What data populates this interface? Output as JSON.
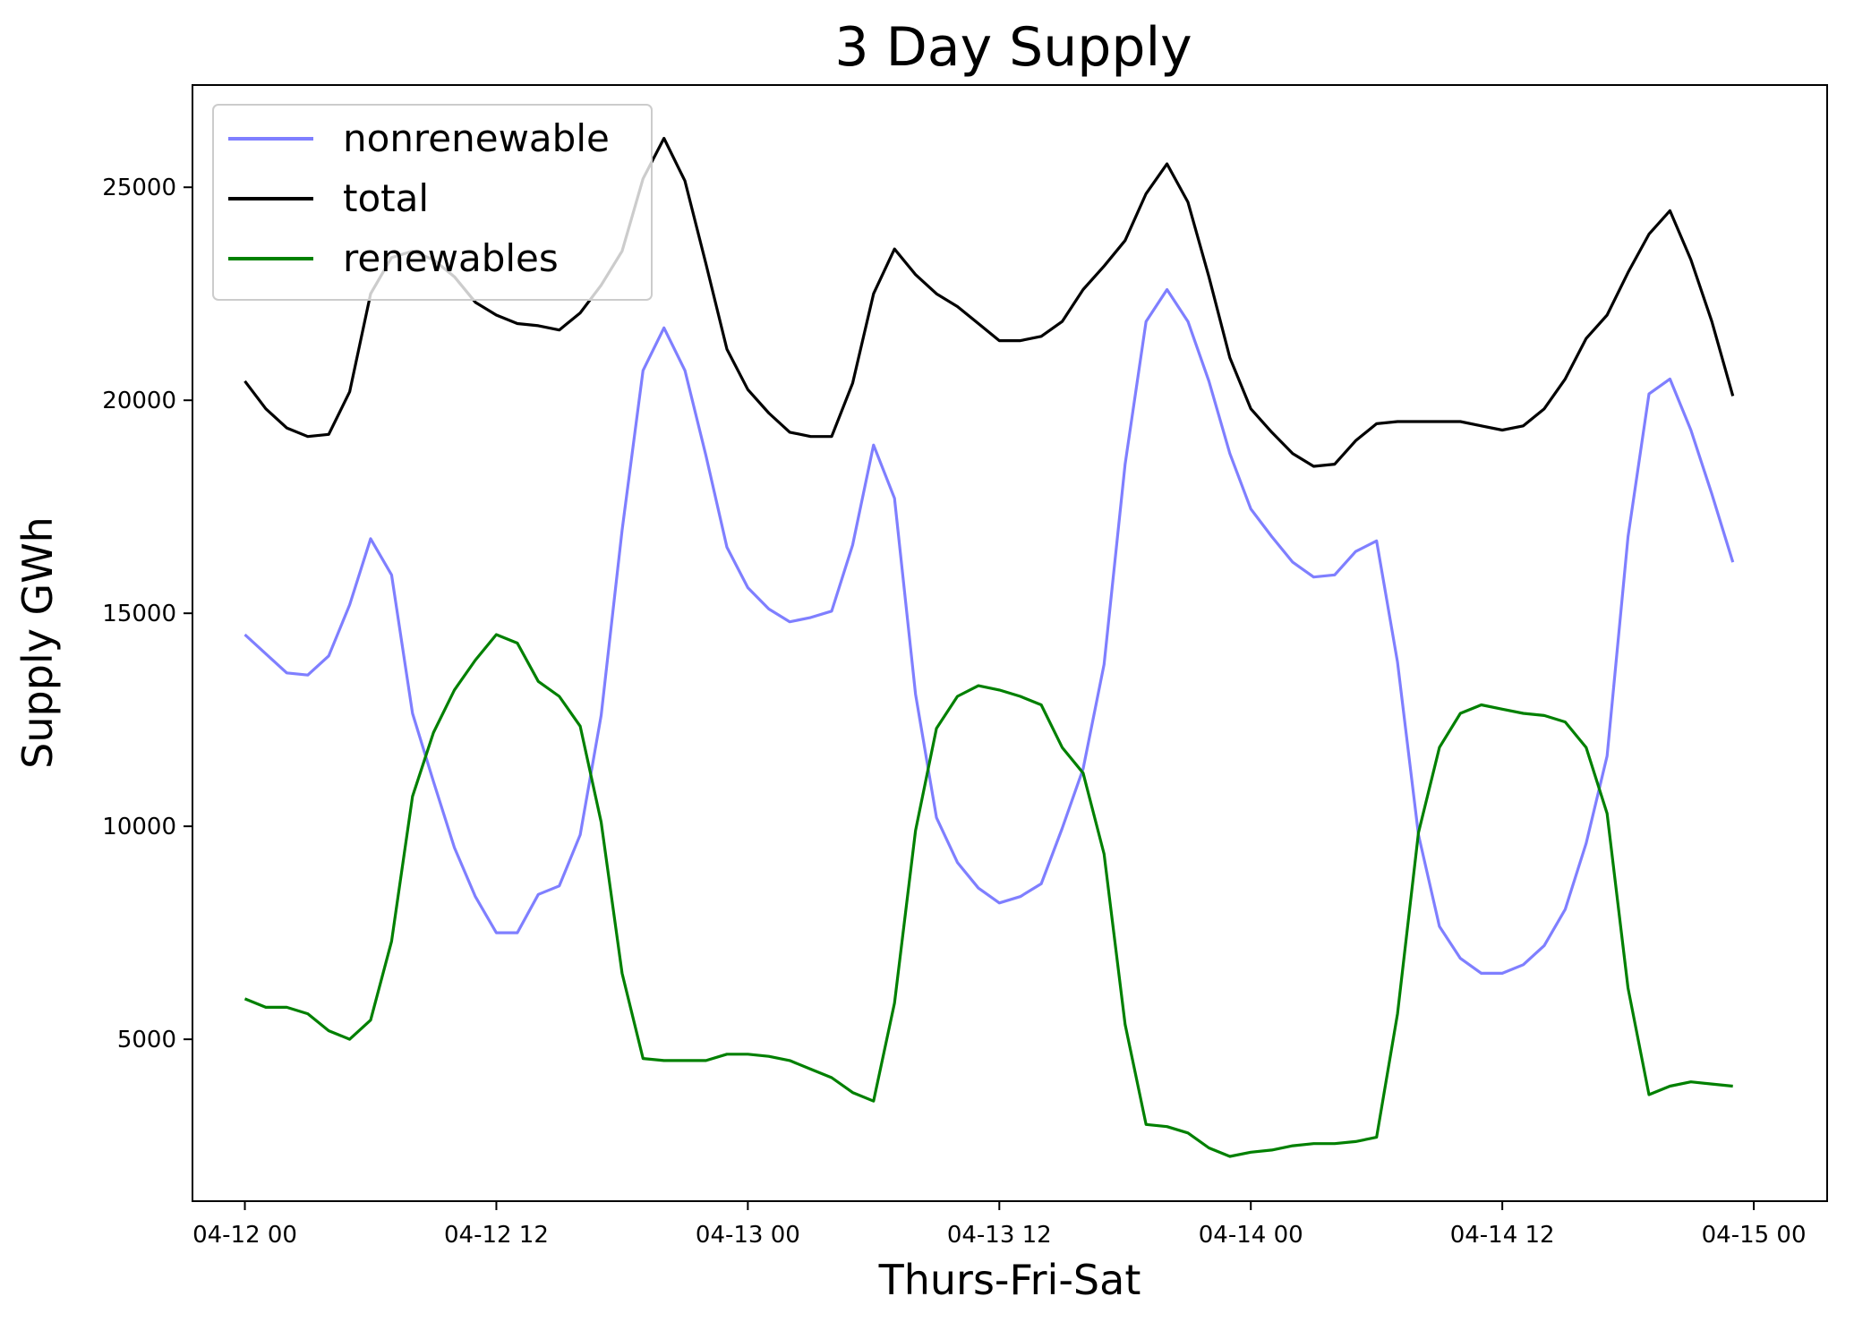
{
  "chart_data": {
    "type": "line",
    "title": "3 Day Supply",
    "xlabel": "Thurs-Fri-Sat",
    "ylabel": "Supply GWh",
    "x_start": "04-12 00",
    "x_step_hours": 1,
    "xlim_hours": [
      -2.5,
      75.5
    ],
    "ylim": [
      1200,
      27400
    ],
    "x_ticks": [
      {
        "hours": 0,
        "label": "04-12 00"
      },
      {
        "hours": 12,
        "label": "04-12 12"
      },
      {
        "hours": 24,
        "label": "04-13 00"
      },
      {
        "hours": 36,
        "label": "04-13 12"
      },
      {
        "hours": 48,
        "label": "04-14 00"
      },
      {
        "hours": 60,
        "label": "04-14 12"
      },
      {
        "hours": 72,
        "label": "04-15 00"
      }
    ],
    "y_ticks": [
      {
        "value": 5000,
        "label": "5000"
      },
      {
        "value": 10000,
        "label": "10000"
      },
      {
        "value": 15000,
        "label": "15000"
      },
      {
        "value": 20000,
        "label": "20000"
      },
      {
        "value": 25000,
        "label": "25000"
      }
    ],
    "grid": false,
    "legend_position": "upper-left",
    "series": [
      {
        "name": "nonrenewable",
        "color": "#7f7fff",
        "values": [
          14500,
          14050,
          13600,
          13550,
          14000,
          15200,
          16750,
          15900,
          12650,
          11050,
          9500,
          8350,
          7500,
          7500,
          8400,
          8600,
          9800,
          12600,
          16950,
          20700,
          21700,
          20700,
          18700,
          16550,
          15600,
          15100,
          14800,
          14900,
          15050,
          16600,
          18950,
          17700,
          13100,
          10200,
          9150,
          8550,
          8200,
          8350,
          8650,
          9950,
          11350,
          13800,
          18500,
          21850,
          22600,
          21850,
          20450,
          18750,
          17450,
          16800,
          16200,
          15850,
          15900,
          16450,
          16700,
          13850,
          9800,
          7650,
          6900,
          6550,
          6550,
          6750,
          7200,
          8050,
          9600,
          11650,
          16800,
          20150,
          20500,
          19300,
          17800,
          16200
        ]
      },
      {
        "name": "total",
        "color": "#000000",
        "values": [
          20450,
          19800,
          19350,
          19150,
          19200,
          20200,
          22500,
          23350,
          23500,
          23300,
          22900,
          22300,
          22000,
          21800,
          21750,
          21650,
          22050,
          22700,
          23500,
          25200,
          26150,
          25150,
          23200,
          21200,
          20250,
          19700,
          19250,
          19150,
          19150,
          20400,
          22500,
          23550,
          22950,
          22500,
          22200,
          21800,
          21400,
          21400,
          21500,
          21850,
          22600,
          23150,
          23750,
          24850,
          25550,
          24650,
          22900,
          21000,
          19800,
          19250,
          18750,
          18450,
          18500,
          19050,
          19450,
          19500,
          19500,
          19500,
          19500,
          19400,
          19300,
          19400,
          19800,
          20500,
          21450,
          22000,
          23000,
          23900,
          24450,
          23300,
          21850,
          20100
        ]
      },
      {
        "name": "renewables",
        "color": "#008000",
        "values": [
          5950,
          5750,
          5750,
          5600,
          5200,
          5000,
          5450,
          7300,
          10700,
          12200,
          13200,
          13900,
          14500,
          14300,
          13400,
          13050,
          12350,
          10100,
          6550,
          4550,
          4500,
          4500,
          4500,
          4650,
          4650,
          4600,
          4500,
          4300,
          4100,
          3750,
          3550,
          5850,
          9900,
          12300,
          13050,
          13300,
          13200,
          13050,
          12850,
          11850,
          11250,
          9350,
          5350,
          3000,
          2950,
          2800,
          2450,
          2250,
          2350,
          2400,
          2500,
          2550,
          2550,
          2600,
          2700,
          5600,
          9850,
          11850,
          12650,
          12850,
          12750,
          12650,
          12600,
          12450,
          11850,
          10300,
          6200,
          3700,
          3900,
          4000,
          3950,
          3900
        ]
      }
    ]
  }
}
